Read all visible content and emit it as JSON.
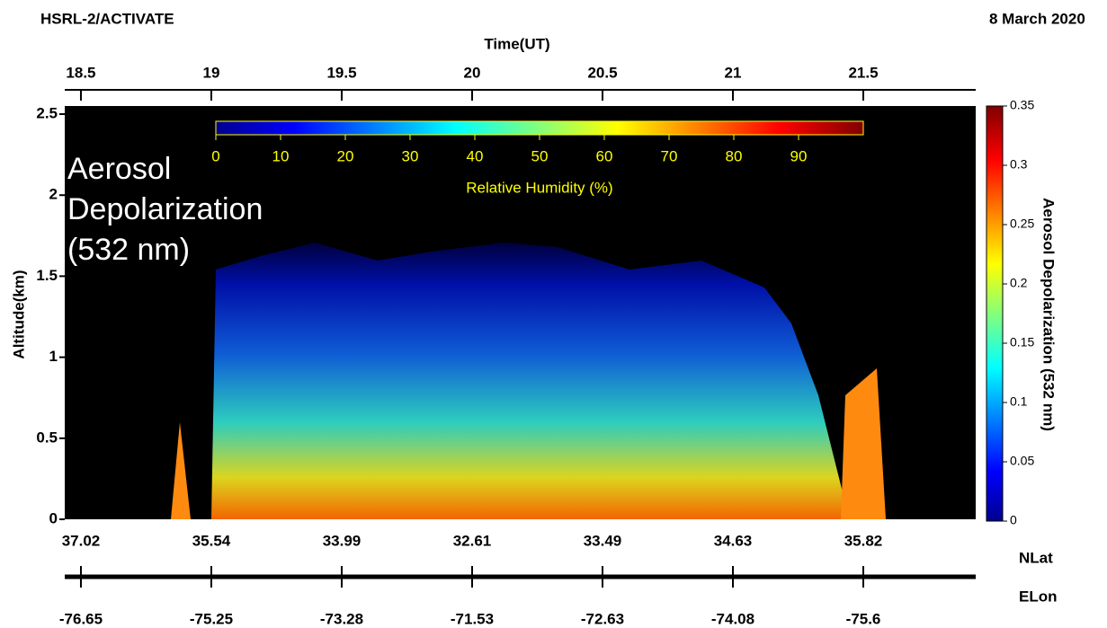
{
  "chart_data": {
    "type": "heatmap",
    "title": "HSRL-2/ACTIVATE",
    "date": "8 March 2020",
    "x2_label": "Time(UT)",
    "xlim": [
      18.438,
      21.931
    ],
    "x2ticks": [
      18.5,
      19,
      19.5,
      20,
      20.5,
      21,
      21.5
    ],
    "xticks": [
      {
        "value": 18.5,
        "label": "37.02"
      },
      {
        "value": 19,
        "label": "35.54"
      },
      {
        "value": 19.5,
        "label": "33.99"
      },
      {
        "value": 20,
        "label": "32.61"
      },
      {
        "value": 20.5,
        "label": "33.49"
      },
      {
        "value": 21,
        "label": "34.63"
      },
      {
        "value": 21.5,
        "label": "35.82"
      }
    ],
    "xlabel": "NLat",
    "x3ticks": [
      {
        "value": 18.5,
        "label": "-76.65"
      },
      {
        "value": 19,
        "label": "-75.25"
      },
      {
        "value": 19.5,
        "label": "-73.28"
      },
      {
        "value": 20,
        "label": "-71.53"
      },
      {
        "value": 20.5,
        "label": "-72.63"
      },
      {
        "value": 21,
        "label": "-74.08"
      },
      {
        "value": 21.5,
        "label": "-75.6"
      }
    ],
    "x3label": "ELon",
    "ylabel": "Altitude(km)",
    "ylim": [
      0,
      2.55
    ],
    "yticks": [
      0,
      0.5,
      1,
      1.5,
      2,
      2.5
    ],
    "annotation": [
      "Aerosol",
      "Depolarization",
      "(532 nm)"
    ],
    "colorbar": {
      "label": "Aerosol Depolarization (532 nm)",
      "lim": [
        0,
        0.35
      ],
      "ticks": [
        0,
        0.05,
        0.1,
        0.15,
        0.2,
        0.25,
        0.3,
        0.35
      ]
    },
    "rh_colorbar": {
      "label": "Relative Humidity (%)",
      "lim": [
        0,
        100
      ],
      "ticks": [
        0,
        10,
        20,
        30,
        40,
        50,
        60,
        70,
        80,
        90
      ]
    }
  }
}
